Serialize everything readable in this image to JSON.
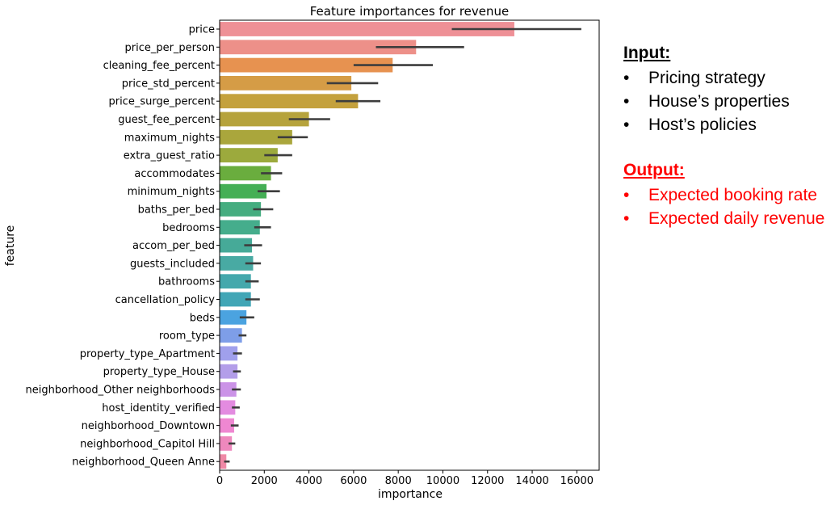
{
  "chart_data": {
    "type": "bar",
    "orientation": "horizontal",
    "title": "Feature importances for revenue",
    "xlabel": "importance",
    "ylabel": "feature",
    "xlim": [
      0,
      17000
    ],
    "xticks": [
      0,
      2000,
      4000,
      6000,
      8000,
      10000,
      12000,
      14000,
      16000
    ],
    "grid": false,
    "categories": [
      "price",
      "price_per_person",
      "cleaning_fee_percent",
      "price_std_percent",
      "price_surge_percent",
      "guest_fee_percent",
      "maximum_nights",
      "extra_guest_ratio",
      "accommodates",
      "minimum_nights",
      "baths_per_bed",
      "bedrooms",
      "accom_per_bed",
      "guests_included",
      "bathrooms",
      "cancellation_policy",
      "beds",
      "room_type",
      "property_type_Apartment",
      "property_type_House",
      "neighborhood_Other neighborhoods",
      "host_identity_verified",
      "neighborhood_Downtown",
      "neighborhood_Capitol Hill",
      "neighborhood_Queen Anne"
    ],
    "values": [
      13200,
      8800,
      7750,
      5900,
      6200,
      4000,
      3250,
      2600,
      2300,
      2100,
      1850,
      1800,
      1450,
      1500,
      1400,
      1400,
      1200,
      1000,
      800,
      800,
      750,
      700,
      650,
      550,
      300
    ],
    "error_low": [
      10400,
      7000,
      6000,
      4800,
      5200,
      3100,
      2600,
      2000,
      1850,
      1700,
      1500,
      1550,
      1100,
      1150,
      1150,
      1150,
      900,
      850,
      600,
      600,
      550,
      550,
      500,
      400,
      200
    ],
    "error_high": [
      16200,
      10950,
      9550,
      7100,
      7200,
      4950,
      3950,
      3250,
      2800,
      2700,
      2400,
      2300,
      1900,
      1850,
      1750,
      1800,
      1550,
      1200,
      1000,
      950,
      950,
      900,
      850,
      700,
      450
    ],
    "colors": [
      "#ee9096",
      "#ed9089",
      "#e79250",
      "#d59c46",
      "#c4a13d",
      "#b6a33c",
      "#aaa63c",
      "#9caa3d",
      "#6aad3e",
      "#45af55",
      "#45ad80",
      "#45ad8c",
      "#46aa98",
      "#48aaa3",
      "#44a8ac",
      "#41a6b6",
      "#4ba3e0",
      "#7e9ee8",
      "#a0a0ec",
      "#b39ee9",
      "#cb93e7",
      "#e38be0",
      "#ef87d1",
      "#ee88bd",
      "#ef89a6"
    ]
  },
  "panel": {
    "input_title": "Input:",
    "input_items": [
      "Pricing strategy",
      "House’s properties",
      "Host’s policies"
    ],
    "output_title": "Output:",
    "output_items": [
      "Expected booking rate",
      "Expected daily revenue"
    ],
    "bullet": "•",
    "input_color": "#000000",
    "output_color": "#ff0000"
  }
}
